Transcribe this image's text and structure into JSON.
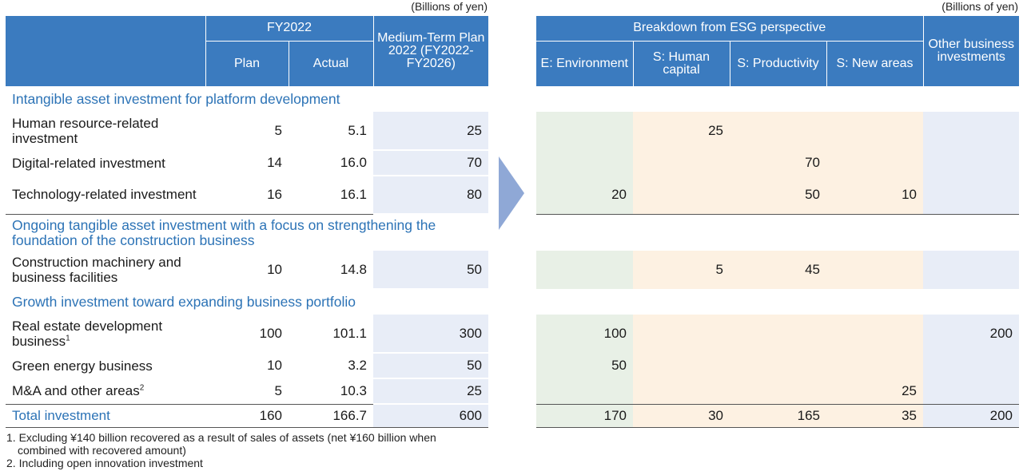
{
  "units": {
    "left": "(Billions of yen)",
    "right": "(Billions of yen)"
  },
  "left_header": {
    "fy2022": "FY2022",
    "plan": "Plan",
    "actual": "Actual",
    "mtp": "Medium-Term Plan 2022 (FY2022-FY2026)"
  },
  "right_header": {
    "esg": "Breakdown from ESG perspective",
    "env": "E: Environment",
    "hc": "S: Human capital",
    "prod": "S: Productivity",
    "newareas": "S: New areas",
    "other": "Other business investments"
  },
  "sections": {
    "s1": "Intangible asset investment for platform development",
    "s2": "Ongoing tangible asset investment with a focus on strengthening the foundation of the construction business",
    "s3": "Growth investment toward expanding business portfolio"
  },
  "rows": {
    "r1": {
      "label": "Human resource-related investment",
      "plan": "5",
      "actual": "5.1",
      "mtp": "25",
      "env": "",
      "hc": "25",
      "prod": "",
      "newareas": "",
      "other": ""
    },
    "r2": {
      "label": "Digital-related investment",
      "plan": "14",
      "actual": "16.0",
      "mtp": "70",
      "env": "",
      "hc": "",
      "prod": "70",
      "newareas": "",
      "other": ""
    },
    "r3": {
      "label": "Technology-related investment",
      "plan": "16",
      "actual": "16.1",
      "mtp": "80",
      "env": "20",
      "hc": "",
      "prod": "50",
      "newareas": "10",
      "other": ""
    },
    "r4": {
      "label": "Construction machinery and business facilities",
      "plan": "10",
      "actual": "14.8",
      "mtp": "50",
      "env": "",
      "hc": "5",
      "prod": "45",
      "newareas": "",
      "other": ""
    },
    "r5": {
      "label": "Real estate development business",
      "sup": "1",
      "plan": "100",
      "actual": "101.1",
      "mtp": "300",
      "env": "100",
      "hc": "",
      "prod": "",
      "newareas": "",
      "other": "200"
    },
    "r6": {
      "label": "Green energy business",
      "plan": "10",
      "actual": "3.2",
      "mtp": "50",
      "env": "50",
      "hc": "",
      "prod": "",
      "newareas": "",
      "other": ""
    },
    "r7": {
      "label": "M&A and other areas",
      "sup": "2",
      "plan": "5",
      "actual": "10.3",
      "mtp": "25",
      "env": "",
      "hc": "",
      "prod": "",
      "newareas": "25",
      "other": ""
    }
  },
  "total": {
    "label": "Total investment",
    "plan": "160",
    "actual": "166.7",
    "mtp": "600",
    "env": "170",
    "hc": "30",
    "prod": "165",
    "newareas": "35",
    "other": "200"
  },
  "notes": {
    "n1": "1. Excluding ¥140 billion recovered as a result of sales of assets (net ¥160 billion when",
    "n1b": "combined with recovered amount)",
    "n2": "2. Including open innovation investment"
  },
  "colors": {
    "header": "#3b7bbf",
    "section_text": "#2c73b6",
    "env_fill": "#e8f0e6",
    "social_fill": "#fdf1e2",
    "other_fill": "#e8edf7",
    "arrow": "#8fa8d6"
  }
}
